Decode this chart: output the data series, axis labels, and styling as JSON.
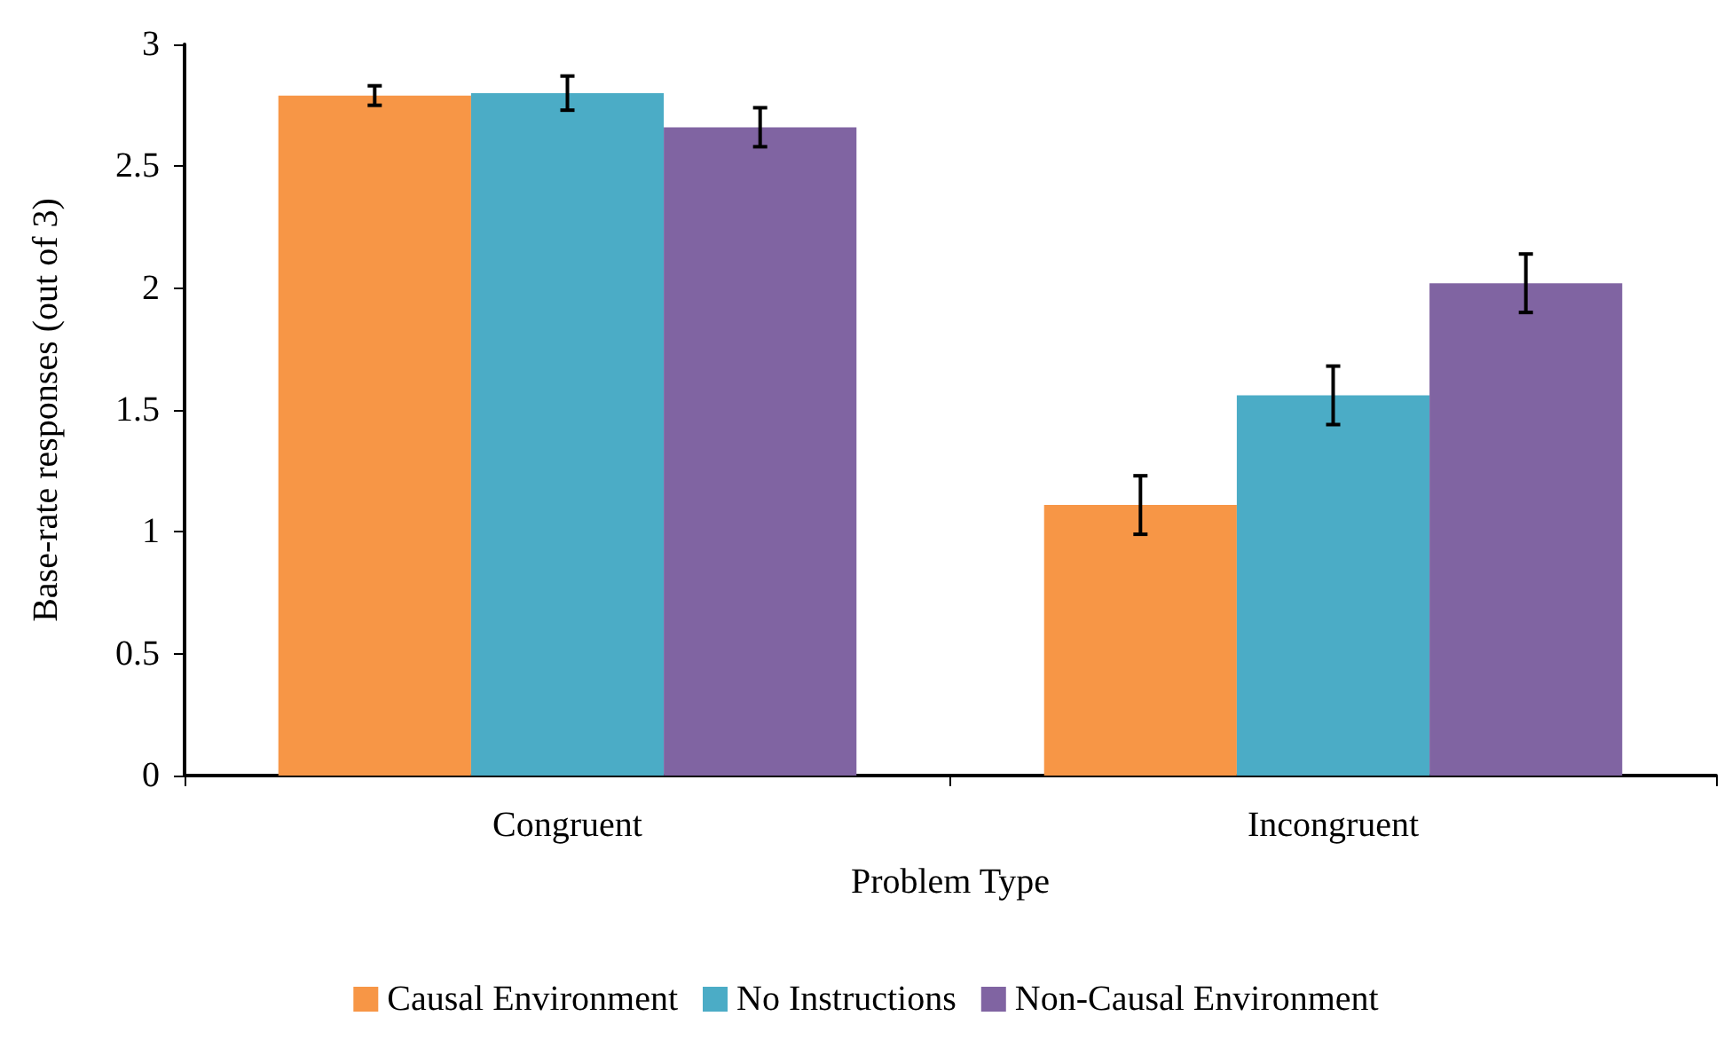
{
  "chart_data": {
    "type": "bar",
    "xlabel": "Problem Type",
    "ylabel": "Base-rate responses (out of 3)",
    "categories": [
      "Congruent",
      "Incongruent"
    ],
    "series": [
      {
        "name": "Causal Environment",
        "color": "#f79646",
        "values": [
          2.79,
          1.11
        ],
        "errors": [
          0.04,
          0.12
        ]
      },
      {
        "name": "No Instructions",
        "color": "#4bacc6",
        "values": [
          2.8,
          1.56
        ],
        "errors": [
          0.07,
          0.12
        ]
      },
      {
        "name": "Non-Causal Environment",
        "color": "#8064a2",
        "values": [
          2.66,
          2.02
        ],
        "errors": [
          0.08,
          0.12
        ]
      }
    ],
    "ylim": [
      0,
      3
    ],
    "yticks": [
      0,
      0.5,
      1,
      1.5,
      2,
      2.5,
      3
    ],
    "grid": false,
    "legend": "bottom"
  }
}
